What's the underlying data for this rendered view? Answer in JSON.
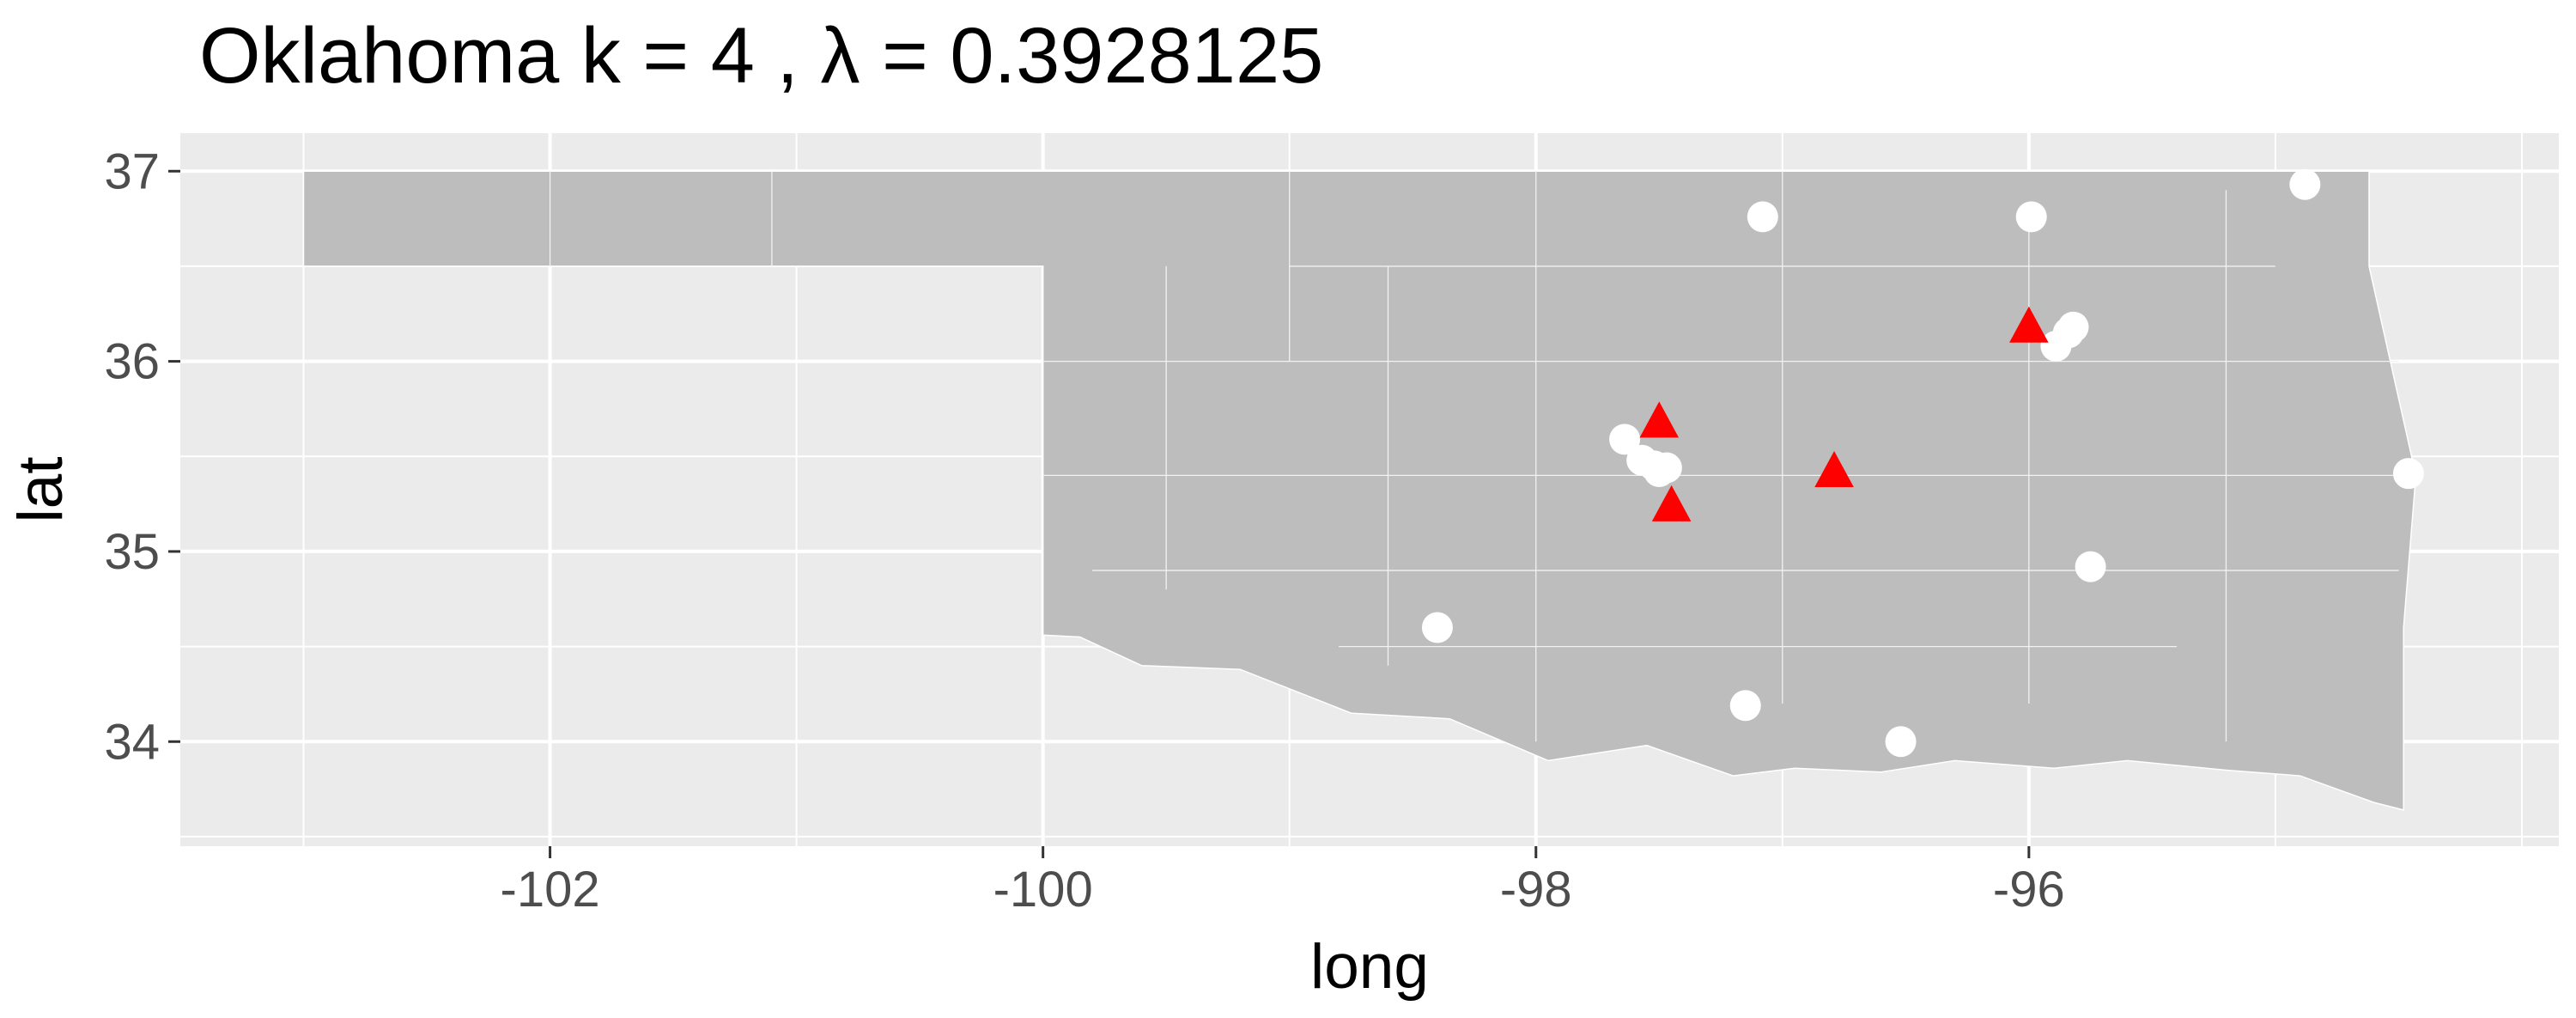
{
  "chart_data": {
    "type": "scatter",
    "title": "Oklahoma  k =  4 ,  λ  =  0.3928125",
    "xlabel": "long",
    "ylabel": "lat",
    "xlim": [
      -103.5,
      -93.85
    ],
    "ylim": [
      33.45,
      37.2
    ],
    "x_ticks": [
      -102,
      -100,
      -98,
      -96
    ],
    "x_tick_labels": [
      "-102",
      "-100",
      "-98",
      "-96"
    ],
    "y_ticks": [
      34,
      35,
      36,
      37
    ],
    "y_tick_labels": [
      "34",
      "35",
      "36",
      "37"
    ],
    "grid": true,
    "legend": "none",
    "colors": {
      "panel_background": "#ebebeb",
      "grid": "#ffffff",
      "state_fill": "#bdbdbd",
      "boundary_lines": "#ffffff",
      "points": "#ffffff",
      "centers": "#ff0000"
    },
    "series": [
      {
        "marker": "circle",
        "points": [
          {
            "x": -97.08,
            "y": 36.76
          },
          {
            "x": -95.99,
            "y": 36.76
          },
          {
            "x": -94.88,
            "y": 36.93
          },
          {
            "x": -95.89,
            "y": 36.08
          },
          {
            "x": -95.82,
            "y": 36.18
          },
          {
            "x": -95.84,
            "y": 36.15
          },
          {
            "x": -97.64,
            "y": 35.59
          },
          {
            "x": -97.57,
            "y": 35.48
          },
          {
            "x": -97.52,
            "y": 35.45
          },
          {
            "x": -97.5,
            "y": 35.42
          },
          {
            "x": -97.47,
            "y": 35.44
          },
          {
            "x": -94.46,
            "y": 35.41
          },
          {
            "x": -95.75,
            "y": 34.92
          },
          {
            "x": -98.4,
            "y": 34.6
          },
          {
            "x": -97.15,
            "y": 34.19
          },
          {
            "x": -96.52,
            "y": 34.0
          }
        ]
      },
      {
        "marker": "triangle",
        "points": [
          {
            "x": -97.5,
            "y": 35.68
          },
          {
            "x": -97.45,
            "y": 35.24
          },
          {
            "x": -96.79,
            "y": 35.42
          },
          {
            "x": -96.0,
            "y": 36.18
          }
        ]
      }
    ]
  }
}
